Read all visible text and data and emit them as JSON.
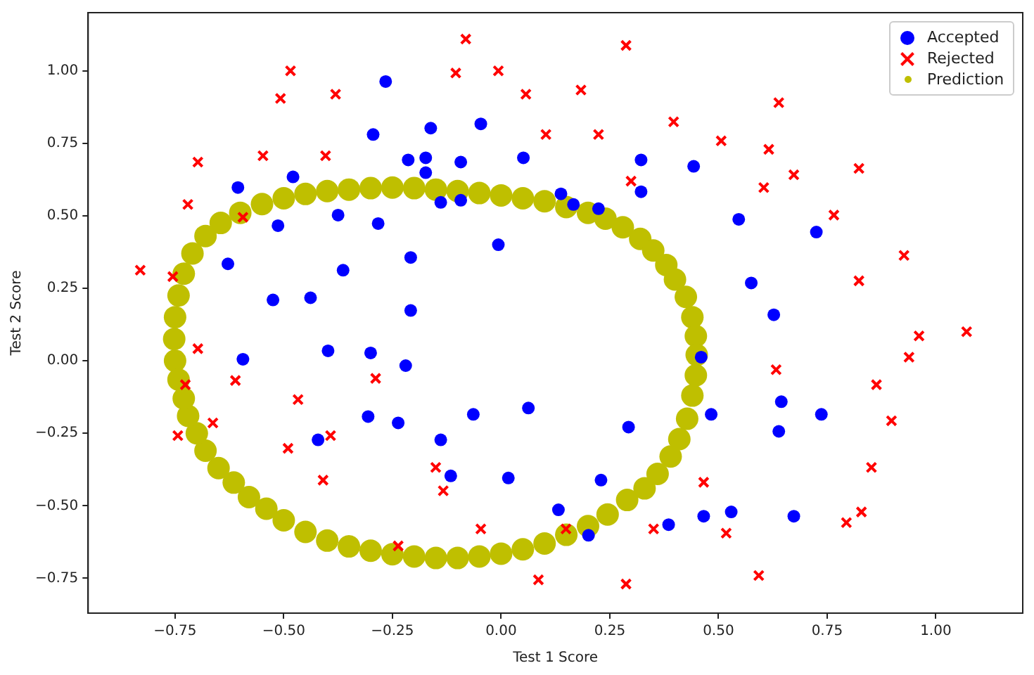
{
  "chart_data": {
    "type": "scatter",
    "xlabel": "Test 1 Score",
    "ylabel": "Test 2 Score",
    "xlim": [
      -0.95,
      1.2
    ],
    "ylim": [
      -0.87,
      1.2
    ],
    "xticks": [
      {
        "value": -0.75,
        "label": "−0.75"
      },
      {
        "value": -0.5,
        "label": "−0.50"
      },
      {
        "value": -0.25,
        "label": "−0.25"
      },
      {
        "value": 0,
        "label": "0.00"
      },
      {
        "value": 0.25,
        "label": "0.25"
      },
      {
        "value": 0.5,
        "label": "0.50"
      },
      {
        "value": 0.75,
        "label": "0.75"
      },
      {
        "value": 1,
        "label": "1.00"
      }
    ],
    "yticks": [
      {
        "value": -0.75,
        "label": "−0.75"
      },
      {
        "value": -0.5,
        "label": "−0.50"
      },
      {
        "value": -0.25,
        "label": "−0.25"
      },
      {
        "value": 0,
        "label": "0.00"
      },
      {
        "value": 0.25,
        "label": "0.25"
      },
      {
        "value": 0.5,
        "label": "0.50"
      },
      {
        "value": 0.75,
        "label": "0.75"
      },
      {
        "value": 1,
        "label": "1.00"
      }
    ],
    "grid": false,
    "legend": "top right",
    "series": [
      {
        "name": "Accepted",
        "color": "#0000ff",
        "marker": "circle",
        "x": [
          0.051267,
          -0.092742,
          -0.21371,
          -0.375,
          -0.51325,
          -0.52477,
          -0.39804,
          -0.30588,
          0.016705,
          0.13191,
          0.38537,
          0.52938,
          0.63882,
          0.73675,
          0.54666,
          0.322,
          0.16647,
          -0.046659,
          -0.17339,
          -0.47869,
          -0.60541,
          -0.62846,
          -0.59389,
          -0.42108,
          -0.11578,
          0.20104,
          0.46601,
          0.67339,
          -0.13882,
          -0.29435,
          -0.26555,
          -0.16187,
          -0.17339,
          -0.28283,
          -0.36348,
          -0.30012,
          -0.23675,
          -0.06394,
          0.062788,
          0.22984,
          0.2932,
          0.48329,
          0.64459,
          0.46025,
          0.6273,
          0.57546,
          0.72523,
          0.22408,
          0.44297,
          0.322,
          0.13767,
          -0.0063364,
          -0.092742,
          -0.20795,
          -0.20795,
          -0.43836,
          -0.21947,
          -0.13882
        ],
        "values": [
          0.69956,
          0.68494,
          0.69225,
          0.50219,
          0.46564,
          0.2098,
          0.034357,
          -0.19225,
          -0.40424,
          -0.51389,
          -0.56506,
          -0.5212,
          -0.24342,
          -0.18494,
          0.48757,
          0.5826,
          0.53874,
          0.81652,
          0.69956,
          0.63377,
          0.59722,
          0.33406,
          0.005117,
          -0.27266,
          -0.39693,
          -0.60161,
          -0.53582,
          -0.53582,
          0.54605,
          0.77997,
          0.96272,
          0.8019,
          0.64839,
          0.47295,
          0.31213,
          0.027047,
          -0.21418,
          -0.18494,
          -0.16301,
          -0.41155,
          -0.2288,
          -0.18494,
          -0.14108,
          0.012427,
          0.15863,
          0.26827,
          0.44371,
          0.52412,
          0.67032,
          0.69225,
          0.57529,
          0.39985,
          0.55336,
          0.35599,
          0.17325,
          0.21711,
          -0.016813,
          -0.27266
        ]
      },
      {
        "name": "Rejected",
        "color": "#ff0000",
        "marker": "cross",
        "x": [
          0.18376,
          0.22408,
          0.29896,
          0.50634,
          0.61578,
          0.60426,
          0.76555,
          0.92684,
          0.82316,
          0.96141,
          0.93836,
          0.86348,
          0.89804,
          0.85196,
          0.82892,
          0.79435,
          0.59274,
          0.51786,
          0.46601,
          0.35081,
          0.28744,
          0.085829,
          0.14919,
          -0.13306,
          -0.40956,
          -0.39228,
          -0.74366,
          -0.69758,
          -0.75518,
          -0.69758,
          -0.4038,
          -0.38076,
          -0.50749,
          -0.54781,
          0.10311,
          0.057028,
          -0.10426,
          -0.081221,
          0.28744,
          0.39689,
          0.63882,
          0.82316,
          0.67339,
          1.0709,
          -0.046659,
          -0.23675,
          -0.15035,
          -0.49021,
          -0.46717,
          -0.28859,
          -0.61118,
          -0.66302,
          -0.72638,
          -0.83007,
          -0.72062,
          -0.59389,
          -0.48445,
          -0.0063364,
          0.63265
        ],
        "values": [
          0.93348,
          0.77997,
          0.61915,
          0.75804,
          0.7288,
          0.59722,
          0.50219,
          0.3633,
          0.27558,
          0.085526,
          0.012427,
          -0.082602,
          -0.20687,
          -0.36769,
          -0.5212,
          -0.55775,
          -0.7405,
          -0.5943,
          -0.41886,
          -0.57968,
          -0.76974,
          -0.75512,
          -0.57968,
          -0.4481,
          -0.41155,
          -0.25804,
          -0.25804,
          0.041667,
          0.2902,
          0.68494,
          0.70687,
          0.91886,
          0.90424,
          0.70687,
          0.77997,
          0.91886,
          0.99196,
          1.1089,
          1.087,
          0.82383,
          0.88962,
          0.66301,
          0.64108,
          0.10015,
          -0.57968,
          -0.63816,
          -0.36769,
          -0.3019,
          -0.13377,
          -0.060673,
          -0.067982,
          -0.21418,
          -0.082602,
          0.31213,
          0.53874,
          0.49488,
          0.99927,
          0.99927,
          -0.030612
        ]
      },
      {
        "name": "Prediction",
        "color": "#bfbf00",
        "marker": "circle",
        "x": [
          -0.75,
          -0.752,
          -0.75,
          -0.742,
          -0.73,
          -0.71,
          -0.68,
          -0.645,
          -0.6,
          -0.55,
          -0.5,
          -0.45,
          -0.4,
          -0.35,
          -0.3,
          -0.25,
          -0.2,
          -0.15,
          -0.1,
          -0.05,
          0.0,
          0.05,
          0.1,
          0.15,
          0.2,
          0.24,
          0.28,
          0.32,
          0.35,
          0.38,
          0.4,
          0.425,
          0.44,
          0.448,
          0.45,
          0.448,
          0.44,
          0.428,
          0.41,
          0.39,
          0.36,
          0.33,
          0.29,
          0.245,
          0.2,
          0.15,
          0.1,
          0.05,
          0.0,
          -0.05,
          -0.1,
          -0.15,
          -0.2,
          -0.25,
          -0.3,
          -0.35,
          -0.4,
          -0.45,
          -0.5,
          -0.54,
          -0.58,
          -0.615,
          -0.65,
          -0.68,
          -0.7,
          -0.72,
          -0.73,
          -0.742
        ],
        "values": [
          0.0,
          0.075,
          0.15,
          0.225,
          0.3,
          0.37,
          0.43,
          0.475,
          0.51,
          0.54,
          0.56,
          0.575,
          0.585,
          0.59,
          0.595,
          0.597,
          0.595,
          0.59,
          0.585,
          0.578,
          0.57,
          0.56,
          0.55,
          0.53,
          0.51,
          0.49,
          0.46,
          0.42,
          0.38,
          0.33,
          0.28,
          0.22,
          0.15,
          0.085,
          0.02,
          -0.05,
          -0.12,
          -0.2,
          -0.27,
          -0.33,
          -0.39,
          -0.44,
          -0.48,
          -0.53,
          -0.57,
          -0.6,
          -0.63,
          -0.65,
          -0.665,
          -0.675,
          -0.68,
          -0.68,
          -0.675,
          -0.667,
          -0.655,
          -0.64,
          -0.62,
          -0.59,
          -0.55,
          -0.51,
          -0.47,
          -0.42,
          -0.37,
          -0.31,
          -0.25,
          -0.19,
          -0.13,
          -0.065
        ]
      }
    ]
  }
}
